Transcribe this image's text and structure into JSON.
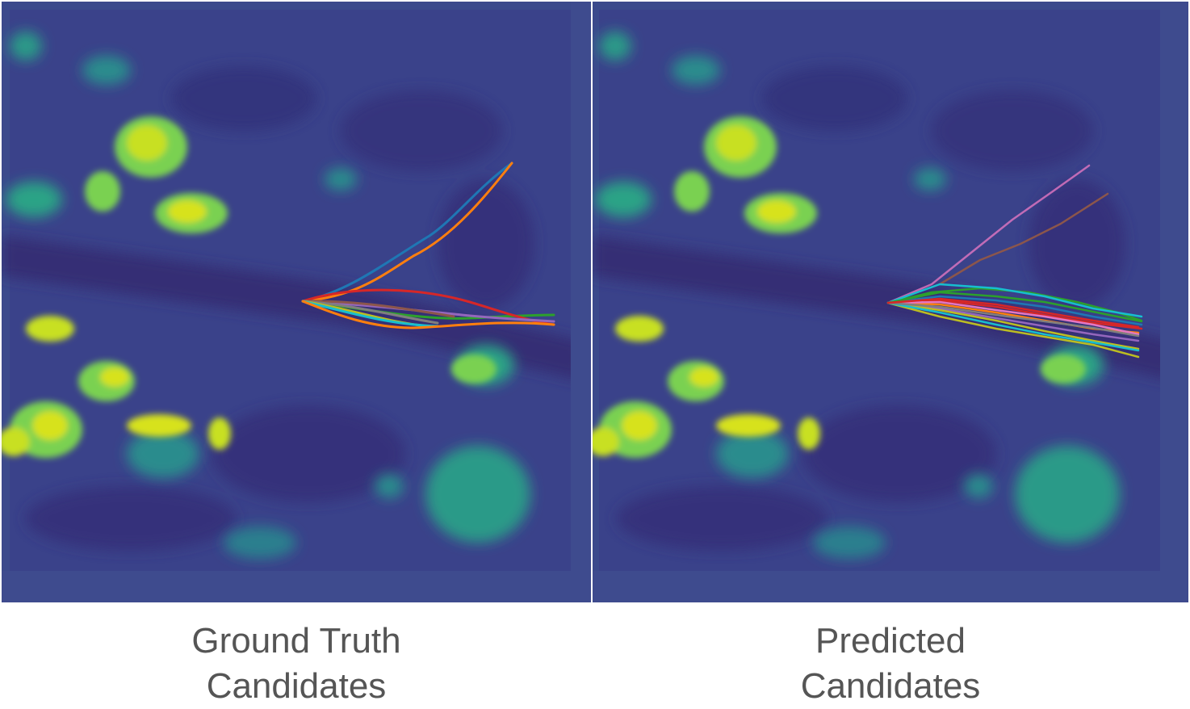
{
  "panels": [
    {
      "id": "ground_truth",
      "caption_line1": "Ground Truth",
      "caption_line2": "Candidates",
      "trajectory_colors": [
        "#1f77b4",
        "#ff7f0e",
        "#2ca02c",
        "#d62728",
        "#9467bd",
        "#8c564b",
        "#e377c2",
        "#7f7f7f",
        "#bcbd22",
        "#17becf"
      ]
    },
    {
      "id": "predicted",
      "caption_line1": "Predicted",
      "caption_line2": "Candidates",
      "trajectory_colors": [
        "#1f77b4",
        "#ff7f0e",
        "#2ca02c",
        "#d62728",
        "#9467bd",
        "#8c564b",
        "#e377c2",
        "#7f7f7f",
        "#bcbd22",
        "#17becf"
      ]
    }
  ],
  "heatmap_colors": {
    "background": "#3b4a8c",
    "dark": "#34307a",
    "mid": "#2a7f8e",
    "bright": "#35b779",
    "hot": "#d7e21d"
  }
}
